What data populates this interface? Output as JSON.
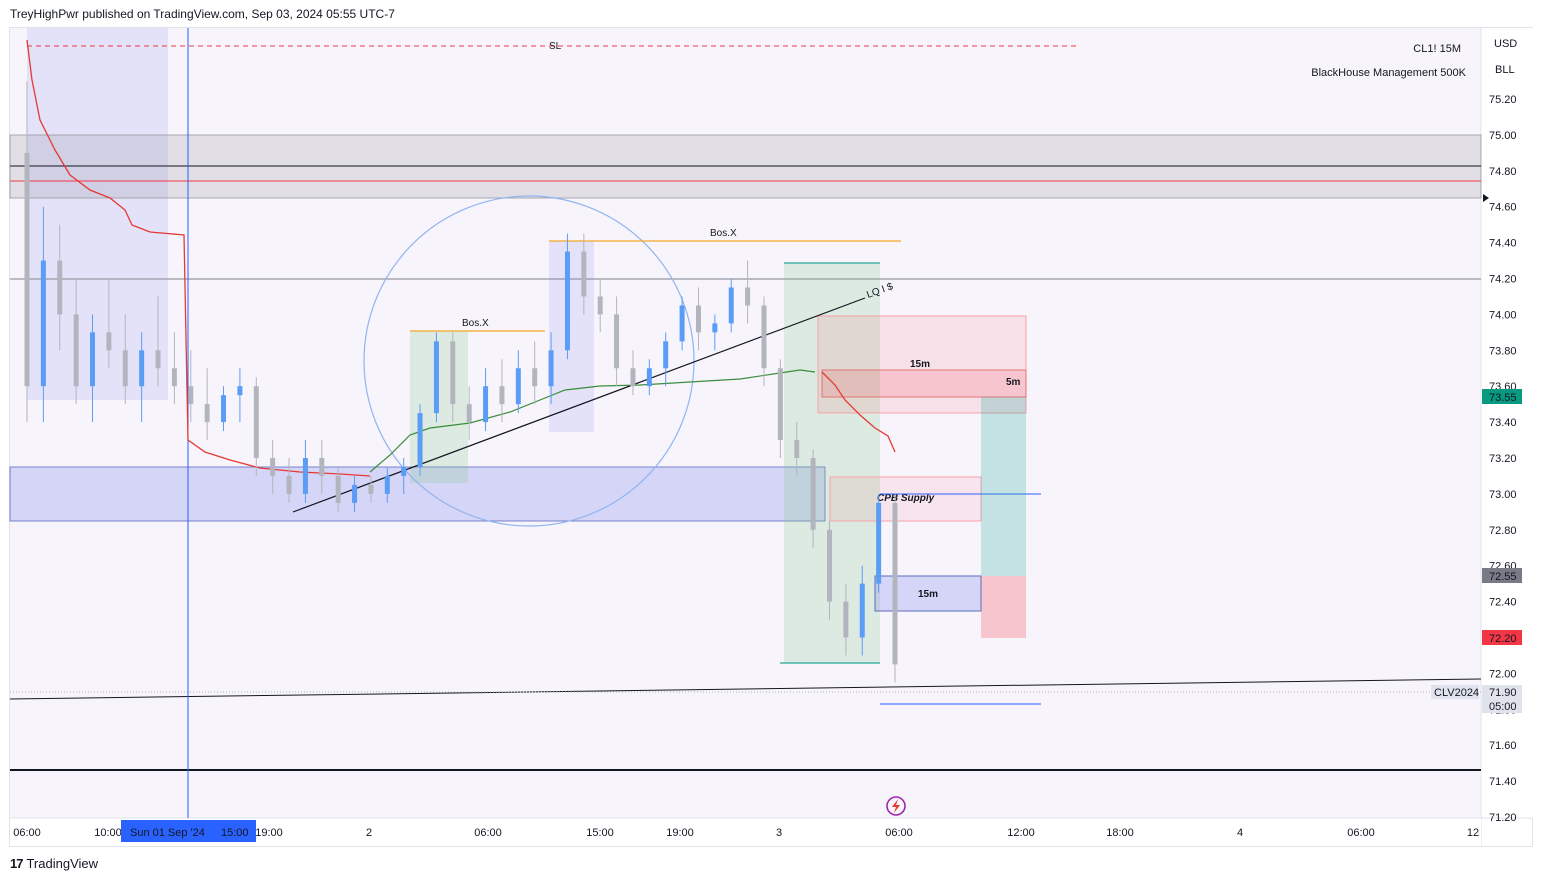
{
  "header": {
    "publish_line": "TreyHighPwr published on TradingView.com, Sep 03, 2024 05:55 UTC-7"
  },
  "footer": {
    "brand": "TradingView",
    "logo_icon": "tradingview-logo-icon"
  },
  "legend": {
    "symbol": "CL1! 15M",
    "account": "BlackHouse Management 500K"
  },
  "price_axis": {
    "currency": "USD",
    "unit": "BLL",
    "ticks": [
      "75.20",
      "75.00",
      "74.80",
      "74.60",
      "74.40",
      "74.20",
      "74.00",
      "73.80",
      "73.60",
      "73.40",
      "73.20",
      "73.00",
      "72.80",
      "72.60",
      "72.40",
      "72.20",
      "72.00",
      "71.80",
      "71.60",
      "71.40",
      "71.20"
    ],
    "badges": [
      {
        "text": "73.55",
        "color": "#089981"
      },
      {
        "text": "72.55",
        "color": "#787b86"
      },
      {
        "text": "72.20",
        "color": "#f23645"
      },
      {
        "text": "71.90",
        "color": "#e0e3eb"
      },
      {
        "text": "05:00",
        "color": "#e0e3eb"
      }
    ],
    "contract_label": "CLV2024"
  },
  "time_axis": {
    "ticks": [
      "06:00",
      "10:00",
      "19:00",
      "2",
      "06:00",
      "15:00",
      "19:00",
      "3",
      "06:00",
      "12:00",
      "18:00",
      "4",
      "06:00",
      "12"
    ],
    "crosshair_label": "Sun 01 Sep '24",
    "crosshair_time": "15:00"
  },
  "annotations": {
    "sl": "SL",
    "bos_1": "Bos.X",
    "bos_2": "Bos.X",
    "lq": "LQ I $",
    "zone_15m_top": "15m",
    "zone_5m": "5m",
    "cpb_supply": "CPB Supply",
    "zone_15m_bottom": "15m"
  },
  "colors": {
    "bull": "#5b9cf6",
    "bear": "#b2b5be",
    "vwap_red": "#e53935",
    "ma_green": "#388e3c",
    "crosshair": "#2962ff",
    "sl_line": "#f23645",
    "bos_line": "#f5a623",
    "blue_zone": "rgba(92,107,232,0.22)",
    "gray_zone": "rgba(120,123,134,0.18)"
  },
  "chart_data": {
    "type": "candlestick",
    "symbol": "CL1!",
    "interval": "15M",
    "y_range": [
      71.2,
      75.2
    ],
    "key_levels": {
      "sl": 75.24,
      "upper_gray_zone": [
        74.65,
        75.0
      ],
      "black_level": 74.83,
      "red_level": 74.75,
      "gray_level": 74.2,
      "blue_demand_zone": [
        72.85,
        73.15
      ],
      "lower_black_level": 71.45,
      "trendline_end": 72.0
    },
    "candles": [
      {
        "o": 74.9,
        "h": 75.3,
        "l": 73.4,
        "c": 73.6
      },
      {
        "o": 73.6,
        "h": 74.6,
        "l": 73.4,
        "c": 74.3
      },
      {
        "o": 74.3,
        "h": 74.5,
        "l": 73.8,
        "c": 74.0
      },
      {
        "o": 74.0,
        "h": 74.2,
        "l": 73.5,
        "c": 73.6
      },
      {
        "o": 73.6,
        "h": 74.0,
        "l": 73.4,
        "c": 73.9
      },
      {
        "o": 73.9,
        "h": 74.2,
        "l": 73.7,
        "c": 73.8
      },
      {
        "o": 73.8,
        "h": 74.0,
        "l": 73.5,
        "c": 73.6
      },
      {
        "o": 73.6,
        "h": 73.9,
        "l": 73.4,
        "c": 73.8
      },
      {
        "o": 73.8,
        "h": 74.1,
        "l": 73.6,
        "c": 73.7
      },
      {
        "o": 73.7,
        "h": 73.9,
        "l": 73.5,
        "c": 73.6
      },
      {
        "o": 73.6,
        "h": 73.8,
        "l": 73.4,
        "c": 73.5
      },
      {
        "o": 73.5,
        "h": 73.7,
        "l": 73.3,
        "c": 73.4
      },
      {
        "o": 73.4,
        "h": 73.6,
        "l": 73.35,
        "c": 73.55
      },
      {
        "o": 73.55,
        "h": 73.7,
        "l": 73.4,
        "c": 73.6
      },
      {
        "o": 73.6,
        "h": 73.65,
        "l": 73.1,
        "c": 73.2
      },
      {
        "o": 73.2,
        "h": 73.3,
        "l": 73.0,
        "c": 73.1
      },
      {
        "o": 73.1,
        "h": 73.2,
        "l": 72.95,
        "c": 73.0
      },
      {
        "o": 73.0,
        "h": 73.3,
        "l": 72.95,
        "c": 73.2
      },
      {
        "o": 73.2,
        "h": 73.3,
        "l": 73.0,
        "c": 73.1
      },
      {
        "o": 73.1,
        "h": 73.15,
        "l": 72.9,
        "c": 72.95
      },
      {
        "o": 72.95,
        "h": 73.1,
        "l": 72.9,
        "c": 73.05
      },
      {
        "o": 73.05,
        "h": 73.1,
        "l": 72.95,
        "c": 73.0
      },
      {
        "o": 73.0,
        "h": 73.15,
        "l": 72.95,
        "c": 73.1
      },
      {
        "o": 73.1,
        "h": 73.2,
        "l": 73.0,
        "c": 73.15
      },
      {
        "o": 73.15,
        "h": 73.5,
        "l": 73.1,
        "c": 73.45
      },
      {
        "o": 73.45,
        "h": 73.9,
        "l": 73.4,
        "c": 73.85
      },
      {
        "o": 73.85,
        "h": 73.9,
        "l": 73.4,
        "c": 73.5
      },
      {
        "o": 73.5,
        "h": 73.6,
        "l": 73.3,
        "c": 73.4
      },
      {
        "o": 73.4,
        "h": 73.7,
        "l": 73.35,
        "c": 73.6
      },
      {
        "o": 73.6,
        "h": 73.75,
        "l": 73.4,
        "c": 73.5
      },
      {
        "o": 73.5,
        "h": 73.8,
        "l": 73.45,
        "c": 73.7
      },
      {
        "o": 73.7,
        "h": 73.85,
        "l": 73.5,
        "c": 73.6
      },
      {
        "o": 73.6,
        "h": 73.9,
        "l": 73.5,
        "c": 73.8
      },
      {
        "o": 73.8,
        "h": 74.45,
        "l": 73.75,
        "c": 74.35
      },
      {
        "o": 74.35,
        "h": 74.45,
        "l": 74.0,
        "c": 74.1
      },
      {
        "o": 74.1,
        "h": 74.2,
        "l": 73.9,
        "c": 74.0
      },
      {
        "o": 74.0,
        "h": 74.1,
        "l": 73.6,
        "c": 73.7
      },
      {
        "o": 73.7,
        "h": 73.8,
        "l": 73.55,
        "c": 73.6
      },
      {
        "o": 73.6,
        "h": 73.75,
        "l": 73.55,
        "c": 73.7
      },
      {
        "o": 73.7,
        "h": 73.9,
        "l": 73.6,
        "c": 73.85
      },
      {
        "o": 73.85,
        "h": 74.1,
        "l": 73.8,
        "c": 74.05
      },
      {
        "o": 74.05,
        "h": 74.15,
        "l": 73.8,
        "c": 73.9
      },
      {
        "o": 73.9,
        "h": 74.0,
        "l": 73.8,
        "c": 73.95
      },
      {
        "o": 73.95,
        "h": 74.2,
        "l": 73.9,
        "c": 74.15
      },
      {
        "o": 74.15,
        "h": 74.3,
        "l": 73.95,
        "c": 74.05
      },
      {
        "o": 74.05,
        "h": 74.1,
        "l": 73.6,
        "c": 73.7
      },
      {
        "o": 73.7,
        "h": 73.75,
        "l": 73.2,
        "c": 73.3
      },
      {
        "o": 73.3,
        "h": 73.4,
        "l": 73.1,
        "c": 73.2
      },
      {
        "o": 73.2,
        "h": 73.25,
        "l": 72.7,
        "c": 72.8
      },
      {
        "o": 72.8,
        "h": 72.85,
        "l": 72.3,
        "c": 72.4
      },
      {
        "o": 72.4,
        "h": 72.5,
        "l": 72.1,
        "c": 72.2
      },
      {
        "o": 72.2,
        "h": 72.6,
        "l": 72.1,
        "c": 72.5
      },
      {
        "o": 72.5,
        "h": 73.0,
        "l": 72.45,
        "c": 72.95
      },
      {
        "o": 72.95,
        "h": 73.0,
        "l": 71.95,
        "c": 72.05
      }
    ]
  }
}
